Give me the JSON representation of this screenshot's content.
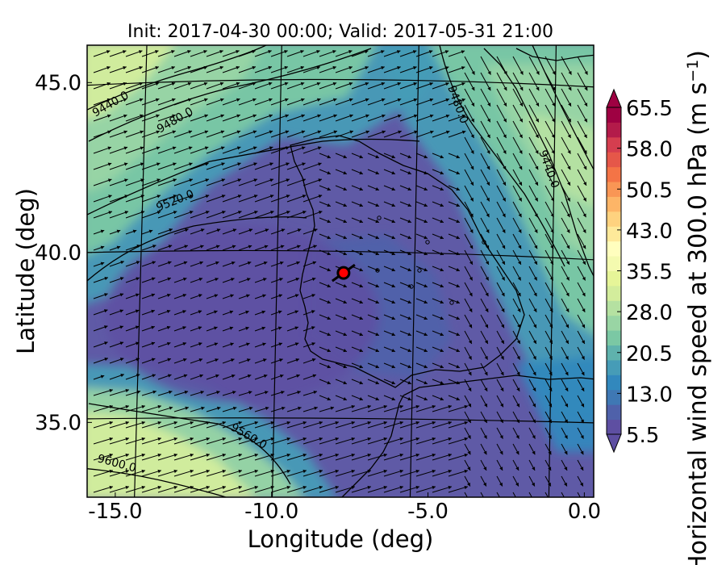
{
  "title": "Init: 2017-04-30 00:00; Valid: 2017-05-31 21:00",
  "x_axis": {
    "label": "Longitude (deg)",
    "range": [
      -15.9,
      0.3
    ],
    "ticks": [
      {
        "value": -15.0,
        "label": "-15.0"
      },
      {
        "value": -10.0,
        "label": "-10.0"
      },
      {
        "value": -5.0,
        "label": "-5.0"
      },
      {
        "value": 0.0,
        "label": "0.0"
      }
    ]
  },
  "y_axis": {
    "label": "Latitude (deg)",
    "range": [
      32.8,
      46.1
    ],
    "ticks": [
      {
        "value": 35.0,
        "label": "35.0"
      },
      {
        "value": 40.0,
        "label": "40.0"
      },
      {
        "value": 45.0,
        "label": "45.0"
      }
    ]
  },
  "colorbar": {
    "label": "Horizontal wind speed at 300.0 hPa (m s",
    "label_superscript": "−1",
    "label_close": ")",
    "range": [
      5.5,
      65.5
    ],
    "extend": "both",
    "ticks": [
      {
        "value": 5.5,
        "label": "5.5"
      },
      {
        "value": 13.0,
        "label": "13.0"
      },
      {
        "value": 20.5,
        "label": "20.5"
      },
      {
        "value": 28.0,
        "label": "28.0"
      },
      {
        "value": 35.5,
        "label": "35.5"
      },
      {
        "value": 43.0,
        "label": "43.0"
      },
      {
        "value": 50.5,
        "label": "50.5"
      },
      {
        "value": 58.0,
        "label": "58.0"
      },
      {
        "value": 65.5,
        "label": "65.5"
      }
    ],
    "colors": [
      "#5e4fa2",
      "#4f61aa",
      "#3f78b4",
      "#3288bd",
      "#469cb7",
      "#5fb2ad",
      "#7bc8a4",
      "#99d5a4",
      "#b5e1a1",
      "#d3ed9c",
      "#e6f598",
      "#f4faaf",
      "#fffebe",
      "#fee99a",
      "#fed27f",
      "#fdb567",
      "#f99655",
      "#f47446",
      "#e55749",
      "#d53e4f",
      "#b31b4a",
      "#9e0142"
    ]
  },
  "contours": {
    "type": "geopotential height isolines",
    "labels": [
      "9440.0",
      "9480.0",
      "9480.0",
      "9440.0",
      "9520.0",
      "9560.0",
      "9600.0"
    ]
  },
  "marker": {
    "lon": -7.7,
    "lat": 39.4,
    "color": "#ff0000"
  },
  "chart_data": {
    "type": "heatmap",
    "title": "Init: 2017-04-30 00:00; Valid: 2017-05-31 21:00",
    "xlabel": "Longitude (deg)",
    "ylabel": "Latitude (deg)",
    "xlim": [
      -15.9,
      0.3
    ],
    "ylim": [
      32.8,
      46.1
    ],
    "color_range": [
      5.5,
      65.5
    ],
    "features": [
      "filled wind-speed contours",
      "wind vectors",
      "geopotential height contours",
      "coastlines",
      "graticule"
    ],
    "contour_levels": [
      9440.0,
      9480.0,
      9520.0,
      9560.0,
      9600.0
    ],
    "regions": [
      {
        "name": "low-speed core over central Atlantic and west Iberia",
        "speed_approx": 6
      },
      {
        "name": "north-west jet band",
        "speed_approx": 22
      },
      {
        "name": "north-east band over France/Gulf of Lion",
        "speed_approx": 22
      },
      {
        "name": "south-west band near Morocco/Atlantic",
        "speed_approx": 24
      }
    ]
  }
}
